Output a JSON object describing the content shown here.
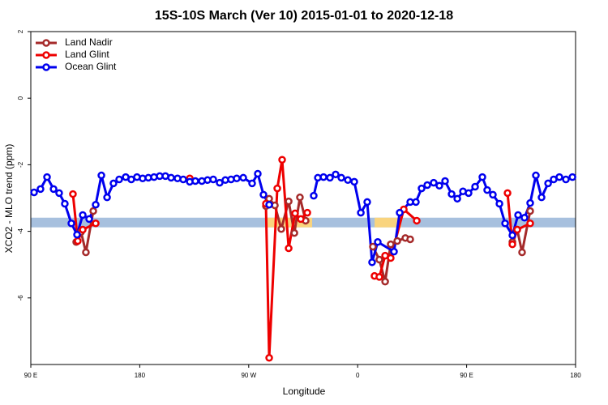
{
  "chart_data": {
    "type": "line",
    "title": "15S-10S March (Ver 10)   2015-01-01 to 2020-12-18",
    "x_label": "Longitude",
    "y_label": "XCO2 - MLO trend (ppm)",
    "xlim": [
      90,
      540
    ],
    "ylim": [
      -8,
      2
    ],
    "xticks": [
      {
        "value": 90,
        "label": "90 E"
      },
      {
        "value": 180,
        "label": "180"
      },
      {
        "value": 270,
        "label": "90 W"
      },
      {
        "value": 360,
        "label": "0"
      },
      {
        "value": 450,
        "label": "90 E"
      },
      {
        "value": 540,
        "label": "180"
      }
    ],
    "yticks": [
      -6,
      -4,
      -2,
      0,
      2
    ],
    "legend": "top-left",
    "bands": [
      {
        "color": "#a7c0de",
        "x": [
          90,
          540
        ],
        "y": [
          -3.88,
          -3.59
        ]
      },
      {
        "color": "#f9d47e",
        "x": [
          285.6,
          322.4
        ],
        "y": [
          -3.88,
          -3.59
        ]
      },
      {
        "color": "#f9d47e",
        "x": [
          374,
          396
        ],
        "y": [
          -3.88,
          -3.59
        ]
      }
    ],
    "series": [
      {
        "name": "Land Nadir",
        "color": "#a52a2a",
        "x": [
          127.5,
          131.5,
          135.5,
          141.6,
          200,
          284.2,
          286.9,
          291.6,
          296.9,
          303.0,
          307.7,
          312.3,
          317.0,
          340,
          372.6,
          377.9,
          382.7,
          387.3,
          392.7,
          399.4,
          403.4,
          450,
          487.8,
          491.8,
          495.8,
          502.5
        ],
        "values": [
          -4.32,
          -4.02,
          -4.63,
          -3.39,
          null,
          -3.24,
          -3.02,
          -3.22,
          -3.93,
          -3.1,
          -4.05,
          -2.98,
          -3.68,
          null,
          -4.46,
          -4.85,
          -5.51,
          -4.39,
          -4.29,
          -4.2,
          -4.24,
          null,
          -4.32,
          -3.95,
          -4.63,
          -3.39
        ]
      },
      {
        "name": "Land Glint",
        "color": "#ee0000",
        "x": [
          124.8,
          128.8,
          132.9,
          143.6,
          180,
          221.3,
          250,
          284.2,
          286.9,
          293.6,
          297.6,
          303.0,
          308.3,
          313.0,
          318.4,
          340,
          373.9,
          377.9,
          382.7,
          387.3,
          398.1,
          408.8,
          450,
          483.8,
          487.8,
          491.8,
          502.5
        ],
        "values": [
          -2.88,
          -4.29,
          -3.95,
          -3.76,
          null,
          -2.41,
          null,
          -3.17,
          -7.8,
          -2.71,
          -1.85,
          -4.51,
          -3.46,
          -3.63,
          -3.44,
          null,
          -5.34,
          -5.37,
          -4.73,
          -4.8,
          -3.34,
          -3.68,
          null,
          -2.85,
          -4.39,
          -3.95,
          -3.76
        ]
      },
      {
        "name": "Ocean Glint",
        "color": "#0000ee",
        "x": [
          92.7,
          98.0,
          103.4,
          108.8,
          113.4,
          118.1,
          123.5,
          128.2,
          132.9,
          138.2,
          143.6,
          148.3,
          153.0,
          158.3,
          163.0,
          168.4,
          173.0,
          177.7,
          182.4,
          187.1,
          191.8,
          196.5,
          201.2,
          205.9,
          211.2,
          215.9,
          221.3,
          225.9,
          231.3,
          236.0,
          240.7,
          246.0,
          250.7,
          255.4,
          260.1,
          265.5,
          272.8,
          277.5,
          282.2,
          286.9,
          305,
          323.7,
          327.1,
          331.8,
          337.1,
          341.8,
          346.5,
          351.9,
          357.2,
          362.6,
          367.9,
          371.9,
          376.6,
          390.0,
          394.7,
          403.4,
          408.1,
          412.8,
          417.5,
          422.8,
          427.5,
          432.2,
          437.6,
          442.3,
          447.0,
          451.6,
          457.0,
          463.0,
          467.0,
          471.7,
          477.1,
          481.8,
          487.8,
          492.5,
          497.8,
          502.5,
          507.2,
          511.9,
          517.3,
          521.9,
          526.6,
          532.0,
          537.4
        ],
        "values": [
          -2.83,
          -2.73,
          -2.37,
          -2.73,
          -2.85,
          -3.17,
          -3.76,
          -4.1,
          -3.51,
          -3.63,
          -3.2,
          -2.32,
          -2.98,
          -2.56,
          -2.44,
          -2.37,
          -2.44,
          -2.37,
          -2.41,
          -2.39,
          -2.37,
          -2.34,
          -2.34,
          -2.39,
          -2.41,
          -2.44,
          -2.51,
          -2.49,
          -2.49,
          -2.46,
          -2.44,
          -2.54,
          -2.46,
          -2.44,
          -2.41,
          -2.39,
          -2.56,
          -2.27,
          -2.9,
          -3.2,
          null,
          -2.93,
          -2.39,
          -2.37,
          -2.39,
          -2.29,
          -2.39,
          -2.46,
          -2.51,
          -3.44,
          -3.12,
          -4.93,
          -4.32,
          -4.61,
          -3.44,
          -3.12,
          -3.12,
          -2.71,
          -2.61,
          -2.54,
          -2.63,
          -2.49,
          -2.88,
          -3.02,
          -2.8,
          -2.85,
          -2.66,
          -2.37,
          -2.76,
          -2.9,
          -3.17,
          -3.76,
          -4.12,
          -3.51,
          -3.59,
          -3.15,
          -2.32,
          -2.98,
          -2.56,
          -2.44,
          -2.37,
          -2.44,
          -2.37
        ]
      }
    ]
  }
}
